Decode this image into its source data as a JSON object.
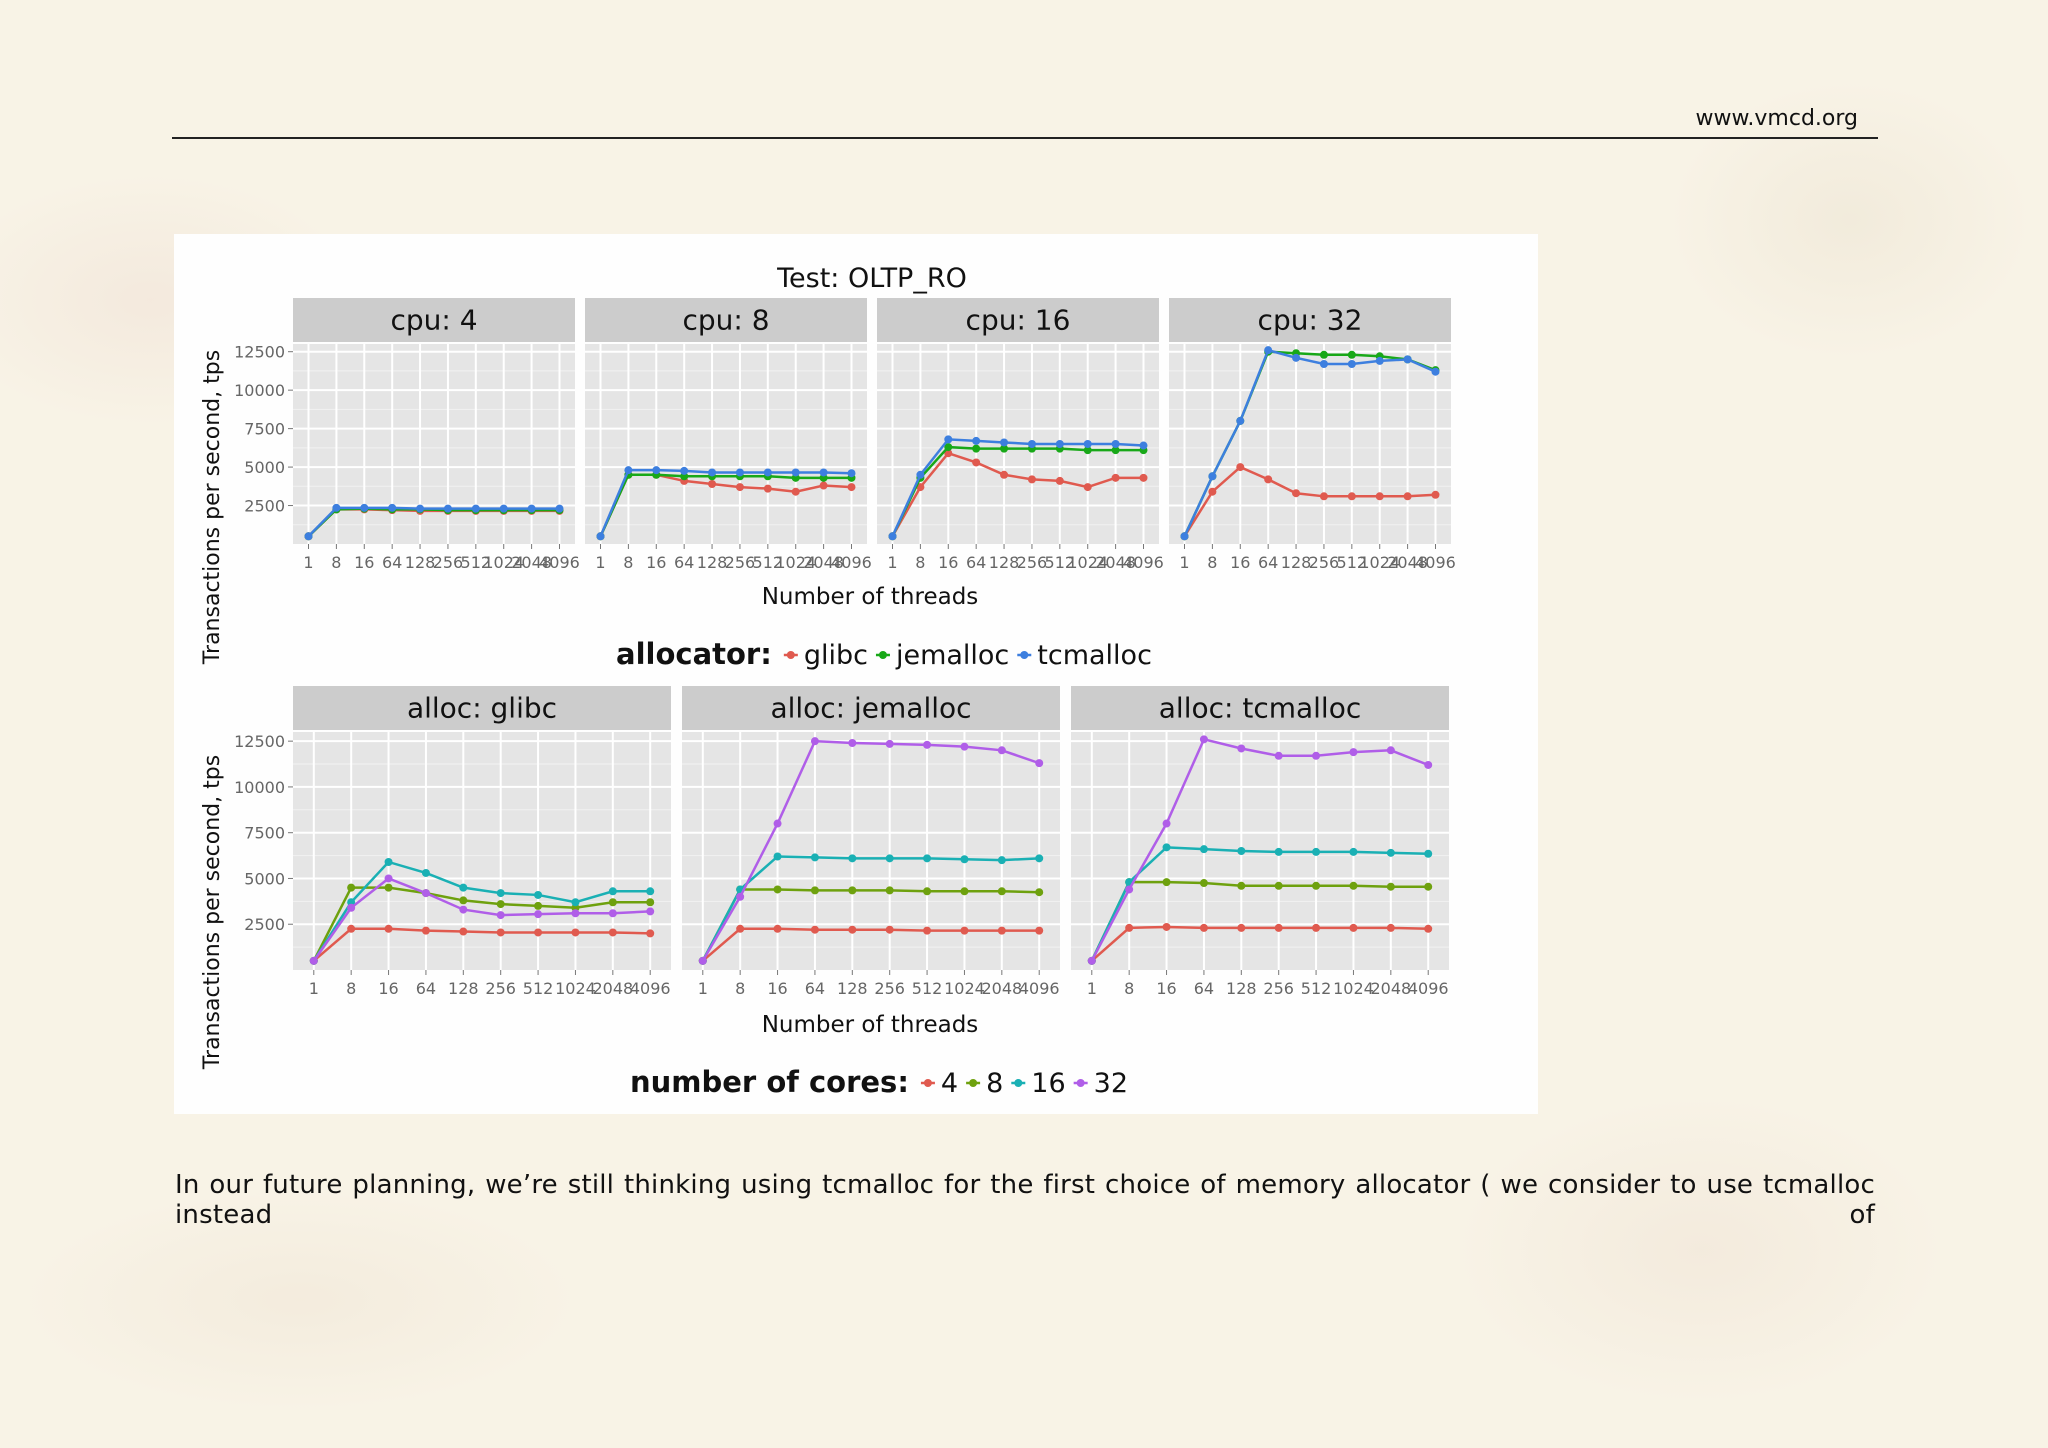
{
  "header": {
    "url": "www.vmcd.org"
  },
  "figure": {
    "title": "Test:  OLTP_RO",
    "ylabel": "Transactions per second, tps",
    "xlabel": "Number of threads",
    "top_legend": {
      "title": "allocator:",
      "items": [
        "glibc",
        "jemalloc",
        "tcmalloc"
      ]
    },
    "bottom_legend": {
      "title": "number of cores:",
      "items": [
        "4",
        "8",
        "16",
        "32"
      ]
    },
    "colors": {
      "glibc": "#e05a4f",
      "jemalloc": "#18a818",
      "tcmalloc": "#3d7fdf",
      "c4": "#e05a4f",
      "c8": "#6ea10e",
      "c16": "#1ab0b4",
      "c32": "#b05ee8",
      "panel_bg": "#e5e5e5",
      "strip_bg": "#cccccc"
    }
  },
  "chart_data": [
    {
      "type": "line",
      "title": "cpu: 4",
      "categories": [
        "1",
        "8",
        "16",
        "64",
        "128",
        "256",
        "512",
        "1024",
        "2048",
        "4096"
      ],
      "ylim": [
        0,
        13000
      ],
      "yticks": [
        "2500",
        "5000",
        "7500",
        "10000",
        "12500"
      ],
      "series": [
        {
          "name": "glibc",
          "values": [
            500,
            2250,
            2250,
            2200,
            2150,
            2150,
            2150,
            2150,
            2150,
            2150
          ]
        },
        {
          "name": "jemalloc",
          "values": [
            500,
            2250,
            2300,
            2250,
            2250,
            2200,
            2200,
            2200,
            2200,
            2200
          ]
        },
        {
          "name": "tcmalloc",
          "values": [
            500,
            2350,
            2350,
            2350,
            2300,
            2300,
            2300,
            2300,
            2300,
            2300
          ]
        }
      ]
    },
    {
      "type": "line",
      "title": "cpu: 8",
      "categories": [
        "1",
        "8",
        "16",
        "64",
        "128",
        "256",
        "512",
        "1024",
        "2048",
        "4096"
      ],
      "ylim": [
        0,
        13000
      ],
      "yticks": [
        "2500",
        "5000",
        "7500",
        "10000",
        "12500"
      ],
      "series": [
        {
          "name": "glibc",
          "values": [
            500,
            4500,
            4500,
            4100,
            3900,
            3700,
            3600,
            3400,
            3800,
            3700
          ]
        },
        {
          "name": "jemalloc",
          "values": [
            500,
            4500,
            4500,
            4400,
            4400,
            4400,
            4400,
            4300,
            4300,
            4300
          ]
        },
        {
          "name": "tcmalloc",
          "values": [
            500,
            4800,
            4800,
            4750,
            4650,
            4650,
            4650,
            4650,
            4650,
            4600
          ]
        }
      ]
    },
    {
      "type": "line",
      "title": "cpu: 16",
      "categories": [
        "1",
        "8",
        "16",
        "64",
        "128",
        "256",
        "512",
        "1024",
        "2048",
        "4096"
      ],
      "ylim": [
        0,
        13000
      ],
      "yticks": [
        "2500",
        "5000",
        "7500",
        "10000",
        "12500"
      ],
      "series": [
        {
          "name": "glibc",
          "values": [
            500,
            3700,
            5900,
            5300,
            4500,
            4200,
            4100,
            3700,
            4300,
            4300
          ]
        },
        {
          "name": "jemalloc",
          "values": [
            500,
            4300,
            6300,
            6200,
            6200,
            6200,
            6200,
            6100,
            6100,
            6100
          ]
        },
        {
          "name": "tcmalloc",
          "values": [
            500,
            4500,
            6800,
            6700,
            6600,
            6500,
            6500,
            6500,
            6500,
            6400
          ]
        }
      ]
    },
    {
      "type": "line",
      "title": "cpu: 32",
      "categories": [
        "1",
        "8",
        "16",
        "64",
        "128",
        "256",
        "512",
        "1024",
        "2048",
        "4096"
      ],
      "ylim": [
        0,
        13000
      ],
      "yticks": [
        "2500",
        "5000",
        "7500",
        "10000",
        "12500"
      ],
      "series": [
        {
          "name": "glibc",
          "values": [
            500,
            3400,
            5000,
            4200,
            3300,
            3100,
            3100,
            3100,
            3100,
            3200
          ]
        },
        {
          "name": "jemalloc",
          "values": [
            500,
            4400,
            8000,
            12500,
            12400,
            12300,
            12300,
            12200,
            12000,
            11300
          ]
        },
        {
          "name": "tcmalloc",
          "values": [
            500,
            4400,
            8000,
            12600,
            12100,
            11700,
            11700,
            11900,
            12000,
            11200
          ]
        }
      ]
    },
    {
      "type": "line",
      "title": "alloc: glibc",
      "categories": [
        "1",
        "8",
        "16",
        "64",
        "128",
        "256",
        "512",
        "1024",
        "2048",
        "4096"
      ],
      "ylim": [
        0,
        13000
      ],
      "yticks": [
        "2500",
        "5000",
        "7500",
        "10000",
        "12500"
      ],
      "series": [
        {
          "name": "4",
          "values": [
            500,
            2250,
            2250,
            2150,
            2100,
            2050,
            2050,
            2050,
            2050,
            2000
          ]
        },
        {
          "name": "8",
          "values": [
            500,
            4500,
            4500,
            4200,
            3800,
            3600,
            3500,
            3400,
            3700,
            3700
          ]
        },
        {
          "name": "16",
          "values": [
            500,
            3700,
            5900,
            5300,
            4500,
            4200,
            4100,
            3700,
            4300,
            4300
          ]
        },
        {
          "name": "32",
          "values": [
            500,
            3400,
            5000,
            4200,
            3300,
            3000,
            3050,
            3100,
            3100,
            3200
          ]
        }
      ]
    },
    {
      "type": "line",
      "title": "alloc: jemalloc",
      "categories": [
        "1",
        "8",
        "16",
        "64",
        "128",
        "256",
        "512",
        "1024",
        "2048",
        "4096"
      ],
      "ylim": [
        0,
        13000
      ],
      "yticks": [
        "2500",
        "5000",
        "7500",
        "10000",
        "12500"
      ],
      "series": [
        {
          "name": "4",
          "values": [
            500,
            2250,
            2250,
            2200,
            2200,
            2200,
            2150,
            2150,
            2150,
            2150
          ]
        },
        {
          "name": "8",
          "values": [
            500,
            4400,
            4400,
            4350,
            4350,
            4350,
            4300,
            4300,
            4300,
            4250
          ]
        },
        {
          "name": "16",
          "values": [
            500,
            4400,
            6200,
            6150,
            6100,
            6100,
            6100,
            6050,
            6000,
            6100
          ]
        },
        {
          "name": "32",
          "values": [
            500,
            4000,
            8000,
            12500,
            12400,
            12350,
            12300,
            12200,
            12000,
            11300
          ]
        }
      ]
    },
    {
      "type": "line",
      "title": "alloc: tcmalloc",
      "categories": [
        "1",
        "8",
        "16",
        "64",
        "128",
        "256",
        "512",
        "1024",
        "2048",
        "4096"
      ],
      "ylim": [
        0,
        13000
      ],
      "yticks": [
        "2500",
        "5000",
        "7500",
        "10000",
        "12500"
      ],
      "series": [
        {
          "name": "4",
          "values": [
            500,
            2300,
            2350,
            2300,
            2300,
            2300,
            2300,
            2300,
            2300,
            2250
          ]
        },
        {
          "name": "8",
          "values": [
            500,
            4800,
            4800,
            4750,
            4600,
            4600,
            4600,
            4600,
            4550,
            4550
          ]
        },
        {
          "name": "16",
          "values": [
            500,
            4800,
            6700,
            6600,
            6500,
            6450,
            6450,
            6450,
            6400,
            6350
          ]
        },
        {
          "name": "32",
          "values": [
            500,
            4400,
            8000,
            12600,
            12100,
            11700,
            11700,
            11900,
            12000,
            11200
          ]
        }
      ]
    }
  ],
  "body": {
    "paragraph": "In our future planning, we’re still thinking using tcmalloc for the first choice of memory allocator ( we consider to use tcmalloc instead of"
  }
}
